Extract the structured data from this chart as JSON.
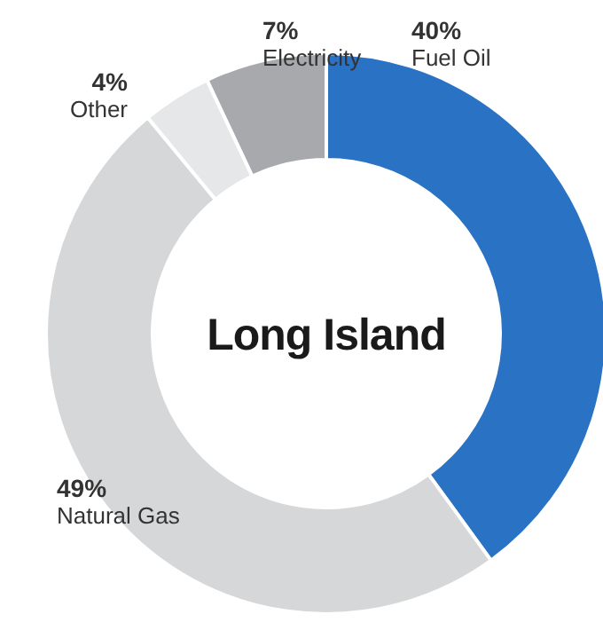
{
  "chart_data": {
    "type": "donut",
    "title": "Long Island",
    "categories": [
      "Fuel Oil",
      "Natural Gas",
      "Other",
      "Electricity"
    ],
    "values": [
      40,
      49,
      4,
      7
    ],
    "colors": [
      "#2a72c3",
      "#d6d7d9",
      "#e6e7e8",
      "#a7a9ac"
    ],
    "value_labels": [
      "40%",
      "49%",
      "4%",
      "7%"
    ]
  }
}
